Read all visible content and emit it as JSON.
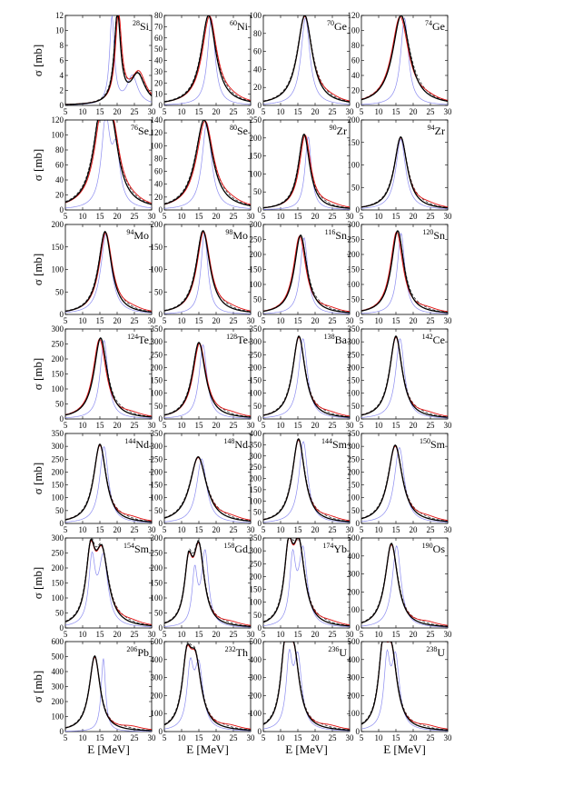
{
  "figure": {
    "xlabel": "E [MeV]",
    "ylabel": "σ [mb]",
    "x_ticks": [
      "5",
      "10",
      "15",
      "20",
      "25",
      "30"
    ],
    "colors": {
      "black": "#000000",
      "red": "#e01010",
      "blue": "#8c8cf0",
      "dashed": "#303030"
    }
  },
  "chart_data": [
    {
      "type": "line",
      "nucleus": {
        "mass": "28",
        "element": "Si"
      },
      "xlim": [
        5,
        30
      ],
      "ylim": [
        0,
        12
      ],
      "y_ticks": [
        "0",
        "2",
        "4",
        "6",
        "8",
        "10",
        "12"
      ],
      "shape": {
        "peaks": [
          [
            20.1,
            1.0,
            2.2
          ],
          [
            26.0,
            0.33,
            5.0
          ]
        ],
        "blue_shift": -1.6,
        "blue_width": 0.75,
        "red_shift": 0.3
      }
    },
    {
      "type": "line",
      "nucleus": {
        "mass": "60",
        "element": "Ni"
      },
      "xlim": [
        5,
        30
      ],
      "ylim": [
        0,
        80
      ],
      "y_ticks": [
        "0",
        "10",
        "20",
        "30",
        "40",
        "50",
        "60",
        "70",
        "80"
      ],
      "shape": {
        "peaks": [
          [
            17.8,
            1.0,
            5.2
          ]
        ],
        "blue_shift": 0.8,
        "blue_width": 0.5,
        "red_shift": 0.3
      }
    },
    {
      "type": "line",
      "nucleus": {
        "mass": "70",
        "element": "Ge"
      },
      "xlim": [
        5,
        30
      ],
      "ylim": [
        0,
        100
      ],
      "y_ticks": [
        "0",
        "20",
        "40",
        "60",
        "80",
        "100"
      ],
      "shape": {
        "peaks": [
          [
            17.0,
            1.0,
            5.2
          ]
        ],
        "blue_shift": 0.2,
        "blue_width": 0.6,
        "red_shift": 0
      }
    },
    {
      "type": "line",
      "nucleus": {
        "mass": "74",
        "element": "Ge"
      },
      "xlim": [
        5,
        30
      ],
      "ylim": [
        0,
        120
      ],
      "y_ticks": [
        "0",
        "20",
        "40",
        "60",
        "80",
        "100",
        "120"
      ],
      "shape": {
        "peaks": [
          [
            16.5,
            1.0,
            6.0
          ]
        ],
        "blue_shift": 1.0,
        "blue_width": 0.45,
        "red_shift": -0.3
      }
    },
    {
      "type": "line",
      "nucleus": {
        "mass": "76",
        "element": "Se"
      },
      "xlim": [
        5,
        30
      ],
      "ylim": [
        0,
        120
      ],
      "y_ticks": [
        "0",
        "20",
        "40",
        "60",
        "80",
        "100",
        "120"
      ],
      "shape": {
        "peaks": [
          [
            15.5,
            1.0,
            5.5
          ],
          [
            18.5,
            0.6,
            5
          ]
        ],
        "blue_shift": 1.2,
        "blue_width": 0.55,
        "red_shift": 0.3
      }
    },
    {
      "type": "line",
      "nucleus": {
        "mass": "80",
        "element": "Se"
      },
      "xlim": [
        5,
        30
      ],
      "ylim": [
        0,
        140
      ],
      "y_ticks": [
        "0",
        "20",
        "40",
        "60",
        "80",
        "100",
        "120",
        "140"
      ],
      "shape": {
        "peaks": [
          [
            16.5,
            1.0,
            6.0
          ]
        ],
        "blue_shift": 0.8,
        "blue_width": 0.55,
        "red_shift": 0.3
      }
    },
    {
      "type": "line",
      "nucleus": {
        "mass": "90",
        "element": "Zr"
      },
      "xlim": [
        5,
        30
      ],
      "ylim": [
        0,
        250
      ],
      "y_ticks": [
        "0",
        "50",
        "100",
        "150",
        "200",
        "250"
      ],
      "shape": {
        "peaks": [
          [
            16.8,
            0.84,
            4.0
          ]
        ],
        "blue_shift": 1.2,
        "blue_width": 0.55,
        "red_shift": 0.3
      }
    },
    {
      "type": "line",
      "nucleus": {
        "mass": "94",
        "element": "Zr"
      },
      "xlim": [
        5,
        30
      ],
      "ylim": [
        0,
        200
      ],
      "y_ticks": [
        "0",
        "50",
        "100",
        "150",
        "200"
      ],
      "shape": {
        "peaks": [
          [
            16.4,
            0.81,
            4.6
          ]
        ],
        "blue_shift": 0,
        "blue_width": 0.75,
        "red_shift": 0
      }
    },
    {
      "type": "line",
      "nucleus": {
        "mass": "94",
        "element": "Mo"
      },
      "xlim": [
        5,
        30
      ],
      "ylim": [
        0,
        200
      ],
      "y_ticks": [
        "0",
        "50",
        "100",
        "150",
        "200"
      ],
      "shape": {
        "peaks": [
          [
            16.5,
            0.92,
            4.6
          ]
        ],
        "blue_shift": 0.3,
        "blue_width": 0.8,
        "red_shift": 0.2
      }
    },
    {
      "type": "line",
      "nucleus": {
        "mass": "98",
        "element": "Mo"
      },
      "xlim": [
        5,
        30
      ],
      "ylim": [
        0,
        200
      ],
      "y_ticks": [
        "0",
        "50",
        "100",
        "150",
        "200"
      ],
      "shape": {
        "peaks": [
          [
            16.2,
            0.93,
            4.8
          ]
        ],
        "blue_shift": 0.4,
        "blue_width": 0.5,
        "red_shift": 0.2
      }
    },
    {
      "type": "line",
      "nucleus": {
        "mass": "116",
        "element": "Sn"
      },
      "xlim": [
        5,
        30
      ],
      "ylim": [
        0,
        300
      ],
      "y_ticks": [
        "0",
        "50",
        "100",
        "150",
        "200",
        "250",
        "300"
      ],
      "shape": {
        "peaks": [
          [
            15.8,
            0.88,
            4.4
          ]
        ],
        "blue_shift": 1.0,
        "blue_width": 0.6,
        "red_shift": -0.3
      }
    },
    {
      "type": "line",
      "nucleus": {
        "mass": "120",
        "element": "Sn"
      },
      "xlim": [
        5,
        30
      ],
      "ylim": [
        0,
        300
      ],
      "y_ticks": [
        "0",
        "50",
        "100",
        "150",
        "200",
        "250",
        "300"
      ],
      "shape": {
        "peaks": [
          [
            15.5,
            0.93,
            4.4
          ]
        ],
        "blue_shift": 1.0,
        "blue_width": 0.6,
        "red_shift": -0.3
      }
    },
    {
      "type": "line",
      "nucleus": {
        "mass": "124",
        "element": "Te"
      },
      "xlim": [
        5,
        30
      ],
      "ylim": [
        0,
        300
      ],
      "y_ticks": [
        "0",
        "50",
        "100",
        "150",
        "200",
        "250",
        "300"
      ],
      "shape": {
        "peaks": [
          [
            15.2,
            0.9,
            4.6
          ]
        ],
        "blue_shift": 1.0,
        "blue_width": 0.6,
        "red_shift": -0.3
      }
    },
    {
      "type": "line",
      "nucleus": {
        "mass": "128",
        "element": "Te"
      },
      "xlim": [
        5,
        30
      ],
      "ylim": [
        0,
        350
      ],
      "y_ticks": [
        "0",
        "50",
        "100",
        "150",
        "200",
        "250",
        "300",
        "350"
      ],
      "shape": {
        "peaks": [
          [
            15.0,
            0.85,
            4.6
          ]
        ],
        "blue_shift": 1.2,
        "blue_width": 0.6,
        "red_shift": 0.2
      }
    },
    {
      "type": "line",
      "nucleus": {
        "mass": "138",
        "element": "Ba"
      },
      "xlim": [
        5,
        30
      ],
      "ylim": [
        0,
        350
      ],
      "y_ticks": [
        "0",
        "50",
        "100",
        "150",
        "200",
        "250",
        "300",
        "350"
      ],
      "shape": {
        "peaks": [
          [
            15.3,
            0.92,
            4.4
          ]
        ],
        "blue_shift": 1.2,
        "blue_width": 0.7,
        "red_shift": 0
      }
    },
    {
      "type": "line",
      "nucleus": {
        "mass": "142",
        "element": "Ce"
      },
      "xlim": [
        5,
        30
      ],
      "ylim": [
        0,
        350
      ],
      "y_ticks": [
        "0",
        "50",
        "100",
        "150",
        "200",
        "250",
        "300",
        "350"
      ],
      "shape": {
        "peaks": [
          [
            15.0,
            0.92,
            4.4
          ]
        ],
        "blue_shift": 1.2,
        "blue_width": 0.7,
        "red_shift": 0
      }
    },
    {
      "type": "line",
      "nucleus": {
        "mass": "144",
        "element": "Nd"
      },
      "xlim": [
        5,
        30
      ],
      "ylim": [
        0,
        350
      ],
      "y_ticks": [
        "0",
        "50",
        "100",
        "150",
        "200",
        "250",
        "300",
        "350"
      ],
      "shape": {
        "peaks": [
          [
            15.0,
            0.88,
            4.4
          ]
        ],
        "blue_shift": 1.2,
        "blue_width": 0.7,
        "red_shift": 0
      }
    },
    {
      "type": "line",
      "nucleus": {
        "mass": "148",
        "element": "Nd"
      },
      "xlim": [
        5,
        30
      ],
      "ylim": [
        0,
        350
      ],
      "y_ticks": [
        "0",
        "50",
        "100",
        "150",
        "200",
        "250",
        "300",
        "350"
      ],
      "shape": {
        "peaks": [
          [
            14.8,
            0.74,
            5.8
          ]
        ],
        "blue_shift": 1.0,
        "blue_width": 0.6,
        "red_shift": 0
      }
    },
    {
      "type": "line",
      "nucleus": {
        "mass": "144",
        "element": "Sm"
      },
      "xlim": [
        5,
        30
      ],
      "ylim": [
        0,
        400
      ],
      "y_ticks": [
        "0",
        "50",
        "100",
        "150",
        "200",
        "250",
        "300",
        "350",
        "400"
      ],
      "shape": {
        "peaks": [
          [
            15.2,
            0.94,
            4.4
          ]
        ],
        "blue_shift": 1.4,
        "blue_width": 0.7,
        "red_shift": 0
      }
    },
    {
      "type": "line",
      "nucleus": {
        "mass": "150",
        "element": "Sm"
      },
      "xlim": [
        5,
        30
      ],
      "ylim": [
        0,
        350
      ],
      "y_ticks": [
        "0",
        "50",
        "100",
        "150",
        "200",
        "250",
        "300",
        "350"
      ],
      "shape": {
        "peaks": [
          [
            14.8,
            0.87,
            5.0
          ]
        ],
        "blue_shift": 1.2,
        "blue_width": 0.7,
        "red_shift": 0
      }
    },
    {
      "type": "line",
      "nucleus": {
        "mass": "154",
        "element": "Sm"
      },
      "xlim": [
        5,
        30
      ],
      "ylim": [
        0,
        300
      ],
      "y_ticks": [
        "0",
        "50",
        "100",
        "150",
        "200",
        "250",
        "300"
      ],
      "shape": {
        "peaks": [
          [
            12.3,
            0.72,
            3.2
          ],
          [
            15.6,
            0.78,
            4.6
          ]
        ],
        "blue_shift": 0.4,
        "blue_width": 0.7,
        "red_shift": 0
      }
    },
    {
      "type": "line",
      "nucleus": {
        "mass": "158",
        "element": "Gd"
      },
      "xlim": [
        5,
        30
      ],
      "ylim": [
        0,
        300
      ],
      "y_ticks": [
        "0",
        "50",
        "100",
        "150",
        "200",
        "250",
        "300"
      ],
      "shape": {
        "peaks": [
          [
            12.0,
            0.6,
            2.8
          ],
          [
            15.0,
            0.85,
            3.8
          ]
        ],
        "blue_shift": 1.8,
        "blue_width": 0.65,
        "red_shift": 0
      }
    },
    {
      "type": "line",
      "nucleus": {
        "mass": "174",
        "element": "Yb"
      },
      "xlim": [
        5,
        30
      ],
      "ylim": [
        0,
        350
      ],
      "y_ticks": [
        "0",
        "50",
        "100",
        "150",
        "200",
        "250",
        "300",
        "350"
      ],
      "shape": {
        "peaks": [
          [
            12.3,
            0.73,
            3.0
          ],
          [
            15.3,
            0.86,
            4.2
          ]
        ],
        "blue_shift": 1.2,
        "blue_width": 0.7,
        "red_shift": 0
      }
    },
    {
      "type": "line",
      "nucleus": {
        "mass": "190",
        "element": "Os"
      },
      "xlim": [
        5,
        30
      ],
      "ylim": [
        0,
        500
      ],
      "y_ticks": [
        "0",
        "100",
        "200",
        "300",
        "400",
        "500"
      ],
      "shape": {
        "peaks": [
          [
            13.7,
            0.94,
            4.4
          ]
        ],
        "blue_shift": 1.5,
        "blue_width": 0.7,
        "red_shift": 0
      }
    },
    {
      "type": "line",
      "nucleus": {
        "mass": "206",
        "element": "Pb"
      },
      "xlim": [
        5,
        30
      ],
      "ylim": [
        0,
        600
      ],
      "y_ticks": [
        "0",
        "100",
        "200",
        "300",
        "400",
        "500",
        "600"
      ],
      "shape": {
        "peaks": [
          [
            13.5,
            0.84,
            3.8
          ]
        ],
        "blue_shift": 2.5,
        "blue_width": 0.4,
        "red_shift": 0
      }
    },
    {
      "type": "line",
      "nucleus": {
        "mass": "232",
        "element": "Th"
      },
      "xlim": [
        5,
        30
      ],
      "ylim": [
        0,
        500
      ],
      "y_ticks": [
        "0",
        "100",
        "200",
        "300",
        "400",
        "500"
      ],
      "shape": {
        "peaks": [
          [
            11.5,
            0.66,
            3.2
          ],
          [
            14.0,
            0.71,
            4.2
          ]
        ],
        "blue_shift": 1.0,
        "blue_width": 0.7,
        "red_shift": 0
      }
    },
    {
      "type": "line",
      "nucleus": {
        "mass": "236",
        "element": "U"
      },
      "xlim": [
        5,
        30
      ],
      "ylim": [
        0,
        500
      ],
      "y_ticks": [
        "0",
        "100",
        "200",
        "300",
        "400",
        "500"
      ],
      "shape": {
        "peaks": [
          [
            11.3,
            0.75,
            3.0
          ],
          [
            13.8,
            0.8,
            4.0
          ]
        ],
        "blue_shift": 1.2,
        "blue_width": 0.7,
        "red_shift": 0
      }
    },
    {
      "type": "line",
      "nucleus": {
        "mass": "238",
        "element": "U"
      },
      "xlim": [
        5,
        30
      ],
      "ylim": [
        0,
        500
      ],
      "y_ticks": [
        "0",
        "100",
        "200",
        "300",
        "400",
        "500"
      ],
      "shape": {
        "peaks": [
          [
            11.2,
            0.74,
            3.0
          ],
          [
            13.7,
            0.8,
            4.0
          ]
        ],
        "blue_shift": 1.2,
        "blue_width": 0.7,
        "red_shift": 0
      }
    }
  ]
}
